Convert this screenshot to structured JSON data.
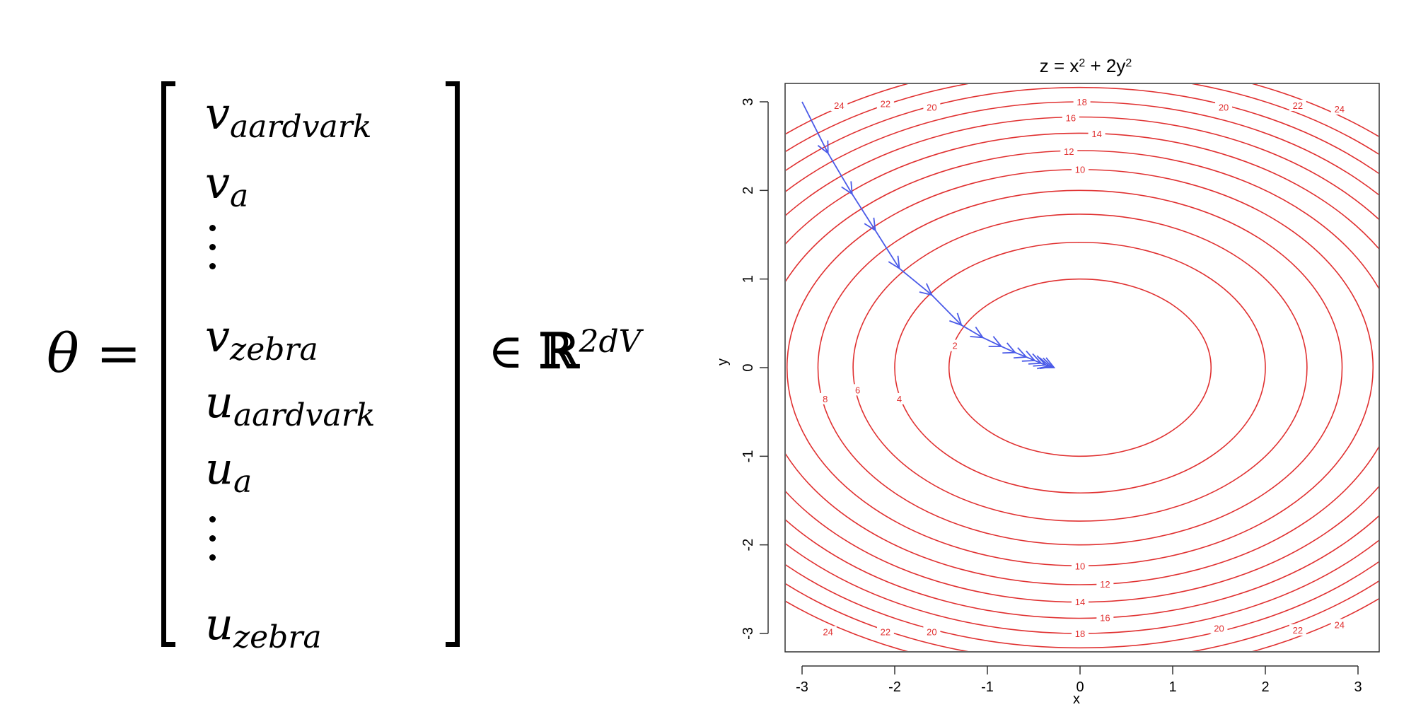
{
  "equation": {
    "lhs": "θ =",
    "entries": [
      {
        "base": "v",
        "sub": "aardvark"
      },
      {
        "base": "v",
        "sub": "a"
      },
      {
        "base": "v",
        "sub": "zebra"
      },
      {
        "base": "u",
        "sub": "aardvark"
      },
      {
        "base": "u",
        "sub": "a"
      },
      {
        "base": "u",
        "sub": "zebra"
      }
    ],
    "set_symbol": "∈",
    "set_name": "ℝ",
    "set_power": "2dV"
  },
  "plot": {
    "title_prefix": "z = x",
    "title_exp1": "2",
    "title_mid": " + 2y",
    "title_exp2": "2",
    "xlabel": "x",
    "ylabel": "y",
    "xticks": [
      "-3",
      "-2",
      "-1",
      "0",
      "1",
      "2",
      "3"
    ],
    "yticks": [
      "-3",
      "-2",
      "-1",
      "0",
      "1",
      "2",
      "3"
    ],
    "xlim": [
      -3,
      3
    ],
    "ylim": [
      -3,
      3
    ],
    "contour_color": "#e03030",
    "path_color": "#4a5ae8",
    "contour_levels": [
      2,
      4,
      6,
      8,
      10,
      12,
      14,
      16,
      18,
      20,
      22,
      24
    ],
    "contour_labels": [
      {
        "text": "2",
        "x": -1.35,
        "y": 0.25
      },
      {
        "text": "4",
        "x": -1.95,
        "y": -0.35
      },
      {
        "text": "6",
        "x": -2.4,
        "y": -0.25
      },
      {
        "text": "8",
        "x": -2.75,
        "y": -0.35
      },
      {
        "text": "10",
        "x": 0.0,
        "y": 2.24
      },
      {
        "text": "12",
        "x": -0.12,
        "y": 2.44
      },
      {
        "text": "14",
        "x": 0.18,
        "y": 2.64
      },
      {
        "text": "16",
        "x": -0.1,
        "y": 2.82
      },
      {
        "text": "18",
        "x": 0.02,
        "y": 3.0
      },
      {
        "text": "20",
        "x": -1.6,
        "y": 2.94
      },
      {
        "text": "22",
        "x": -2.1,
        "y": 2.98
      },
      {
        "text": "24",
        "x": -2.6,
        "y": 2.96
      },
      {
        "text": "20",
        "x": 1.55,
        "y": 2.94
      },
      {
        "text": "22",
        "x": 2.35,
        "y": 2.96
      },
      {
        "text": "24",
        "x": 2.8,
        "y": 2.92
      },
      {
        "text": "10",
        "x": 0.0,
        "y": -2.24
      },
      {
        "text": "12",
        "x": 0.27,
        "y": -2.44
      },
      {
        "text": "14",
        "x": 0.0,
        "y": -2.64
      },
      {
        "text": "16",
        "x": 0.27,
        "y": -2.82
      },
      {
        "text": "18",
        "x": 0.0,
        "y": -3.0
      },
      {
        "text": "20",
        "x": -1.6,
        "y": -2.98
      },
      {
        "text": "22",
        "x": -2.1,
        "y": -2.98
      },
      {
        "text": "24",
        "x": -2.72,
        "y": -2.98
      },
      {
        "text": "20",
        "x": 1.5,
        "y": -2.94
      },
      {
        "text": "22",
        "x": 2.35,
        "y": -2.96
      },
      {
        "text": "24",
        "x": 2.8,
        "y": -2.9
      }
    ],
    "path_points": [
      [
        -3.0,
        3.0
      ],
      [
        -2.72,
        2.42
      ],
      [
        -2.46,
        1.96
      ],
      [
        -2.21,
        1.55
      ],
      [
        -1.95,
        1.12
      ],
      [
        -1.6,
        0.82
      ],
      [
        -1.28,
        0.48
      ],
      [
        -1.05,
        0.34
      ],
      [
        -0.85,
        0.24
      ],
      [
        -0.7,
        0.17
      ],
      [
        -0.58,
        0.12
      ],
      [
        -0.49,
        0.08
      ],
      [
        -0.42,
        0.05
      ],
      [
        -0.37,
        0.03
      ],
      [
        -0.33,
        0.02
      ],
      [
        -0.3,
        0.01
      ],
      [
        -0.28,
        0.0
      ]
    ]
  }
}
